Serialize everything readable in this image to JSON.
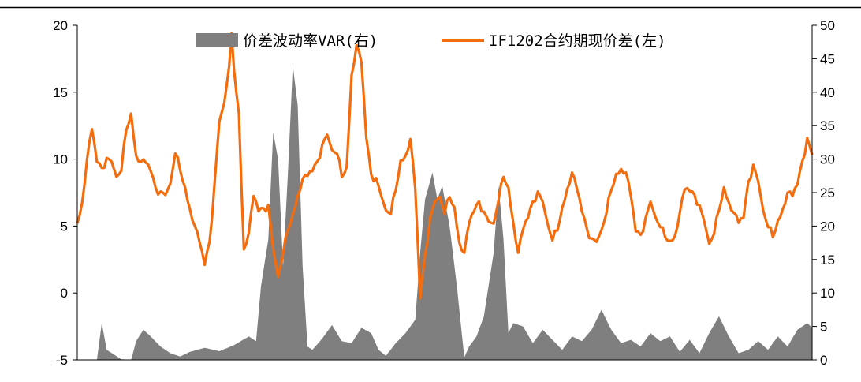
{
  "chart_data": {
    "type": "line+area",
    "legend_position": "top-center",
    "grid": false,
    "x_points": 300,
    "left_axis": {
      "ylim": [
        -5,
        20
      ],
      "ticks": [
        "-5",
        "0",
        "5",
        "10",
        "15",
        "20"
      ]
    },
    "right_axis": {
      "ylim": [
        0,
        50
      ],
      "ticks": [
        "0",
        "5",
        "10",
        "15",
        "20",
        "25",
        "30",
        "35",
        "40",
        "45",
        "50"
      ]
    },
    "series": [
      {
        "name": "价差波动率VAR(右)",
        "kind": "area",
        "axis": "right",
        "color": "#7f7f7f",
        "anchors": [
          [
            0,
            0
          ],
          [
            8,
            0
          ],
          [
            10,
            5.5
          ],
          [
            12,
            1.5
          ],
          [
            15,
            0.8
          ],
          [
            18,
            0.1
          ],
          [
            22,
            0
          ],
          [
            24,
            2.8
          ],
          [
            27,
            4.5
          ],
          [
            30,
            3.5
          ],
          [
            34,
            2
          ],
          [
            38,
            1
          ],
          [
            42,
            0.5
          ],
          [
            46,
            1.2
          ],
          [
            52,
            1.8
          ],
          [
            58,
            1.3
          ],
          [
            64,
            2.2
          ],
          [
            70,
            3.5
          ],
          [
            73,
            2.8
          ],
          [
            75,
            11
          ],
          [
            78,
            18
          ],
          [
            80,
            34
          ],
          [
            82,
            30
          ],
          [
            84,
            14
          ],
          [
            86,
            28
          ],
          [
            88,
            44
          ],
          [
            90,
            38
          ],
          [
            92,
            14
          ],
          [
            94,
            2
          ],
          [
            96,
            1.5
          ],
          [
            100,
            3.2
          ],
          [
            104,
            5.2
          ],
          [
            108,
            2.8
          ],
          [
            112,
            2.5
          ],
          [
            116,
            4.8
          ],
          [
            120,
            4
          ],
          [
            123,
            1.5
          ],
          [
            126,
            0.6
          ],
          [
            130,
            2.5
          ],
          [
            134,
            4
          ],
          [
            138,
            6
          ],
          [
            140,
            16
          ],
          [
            142,
            24
          ],
          [
            145,
            28
          ],
          [
            147,
            24
          ],
          [
            149,
            26
          ],
          [
            152,
            20
          ],
          [
            155,
            11
          ],
          [
            158,
            0.4
          ],
          [
            160,
            2
          ],
          [
            163,
            3.5
          ],
          [
            166,
            6.5
          ],
          [
            170,
            16
          ],
          [
            172,
            26
          ],
          [
            174,
            18
          ],
          [
            176,
            4
          ],
          [
            178,
            5.5
          ],
          [
            182,
            5
          ],
          [
            186,
            2.5
          ],
          [
            190,
            4.5
          ],
          [
            194,
            3
          ],
          [
            198,
            1.5
          ],
          [
            202,
            3.5
          ],
          [
            206,
            2.8
          ],
          [
            210,
            4.5
          ],
          [
            214,
            7.5
          ],
          [
            218,
            4.5
          ],
          [
            222,
            2.5
          ],
          [
            226,
            3
          ],
          [
            230,
            2
          ],
          [
            234,
            4
          ],
          [
            238,
            2.8
          ],
          [
            242,
            3.5
          ],
          [
            246,
            1.2
          ],
          [
            250,
            3
          ],
          [
            254,
            1
          ],
          [
            258,
            4
          ],
          [
            262,
            6.5
          ],
          [
            266,
            3.5
          ],
          [
            270,
            1
          ],
          [
            274,
            1.5
          ],
          [
            278,
            2.8
          ],
          [
            282,
            1.5
          ],
          [
            286,
            3.5
          ],
          [
            290,
            2
          ],
          [
            294,
            4.5
          ],
          [
            298,
            5.5
          ],
          [
            300,
            4.8
          ]
        ]
      },
      {
        "name": "IF1202合约期现价差(左)",
        "kind": "line",
        "axis": "left",
        "color": "#f36c0e",
        "anchors": [
          [
            0,
            4.8
          ],
          [
            2,
            7
          ],
          [
            4,
            10
          ],
          [
            6,
            12
          ],
          [
            8,
            10.2
          ],
          [
            10,
            9.5
          ],
          [
            12,
            10
          ],
          [
            14,
            9.5
          ],
          [
            16,
            9
          ],
          [
            18,
            9.2
          ],
          [
            20,
            12
          ],
          [
            22,
            13
          ],
          [
            24,
            10.5
          ],
          [
            26,
            9.8
          ],
          [
            28,
            9.5
          ],
          [
            30,
            9.5
          ],
          [
            32,
            8
          ],
          [
            34,
            7.5
          ],
          [
            36,
            7
          ],
          [
            38,
            8.5
          ],
          [
            40,
            10.5
          ],
          [
            42,
            9
          ],
          [
            44,
            7.5
          ],
          [
            46,
            6.5
          ],
          [
            48,
            5
          ],
          [
            50,
            3.5
          ],
          [
            52,
            2.5
          ],
          [
            54,
            4
          ],
          [
            56,
            8
          ],
          [
            58,
            12.5
          ],
          [
            60,
            14.5
          ],
          [
            62,
            17
          ],
          [
            63,
            19
          ],
          [
            64,
            16.5
          ],
          [
            66,
            13
          ],
          [
            68,
            3.5
          ],
          [
            70,
            4.5
          ],
          [
            72,
            7
          ],
          [
            74,
            6.5
          ],
          [
            76,
            6.5
          ],
          [
            78,
            6.5
          ],
          [
            80,
            3
          ],
          [
            82,
            1.5
          ],
          [
            84,
            3
          ],
          [
            86,
            4.5
          ],
          [
            88,
            5.5
          ],
          [
            90,
            7.5
          ],
          [
            92,
            8.5
          ],
          [
            94,
            8.5
          ],
          [
            96,
            9.5
          ],
          [
            98,
            10
          ],
          [
            100,
            11
          ],
          [
            102,
            11.5
          ],
          [
            104,
            11
          ],
          [
            106,
            10.5
          ],
          [
            108,
            8.5
          ],
          [
            110,
            9
          ],
          [
            112,
            16.5
          ],
          [
            114,
            18.5
          ],
          [
            116,
            17
          ],
          [
            118,
            12
          ],
          [
            120,
            9
          ],
          [
            122,
            8.5
          ],
          [
            124,
            7
          ],
          [
            126,
            6.5
          ],
          [
            128,
            6
          ],
          [
            130,
            7.5
          ],
          [
            132,
            9.5
          ],
          [
            134,
            10.5
          ],
          [
            136,
            11.5
          ],
          [
            138,
            7.5
          ],
          [
            140,
            0
          ],
          [
            142,
            3
          ],
          [
            144,
            5.5
          ],
          [
            146,
            6.5
          ],
          [
            148,
            7.5
          ],
          [
            150,
            6
          ],
          [
            152,
            7
          ],
          [
            154,
            6
          ],
          [
            156,
            4
          ],
          [
            158,
            3
          ],
          [
            160,
            5
          ],
          [
            162,
            6.5
          ],
          [
            164,
            7
          ],
          [
            166,
            6
          ],
          [
            168,
            5
          ],
          [
            170,
            5.5
          ],
          [
            172,
            7
          ],
          [
            174,
            8.5
          ],
          [
            176,
            7.5
          ],
          [
            178,
            5.5
          ],
          [
            180,
            3
          ],
          [
            182,
            4.5
          ],
          [
            184,
            6
          ],
          [
            186,
            7
          ],
          [
            188,
            7.5
          ],
          [
            190,
            6.5
          ],
          [
            192,
            5.5
          ],
          [
            194,
            4
          ],
          [
            196,
            4.5
          ],
          [
            198,
            6
          ],
          [
            200,
            8
          ],
          [
            202,
            9
          ],
          [
            204,
            7.5
          ],
          [
            206,
            6.5
          ],
          [
            208,
            5
          ],
          [
            210,
            4
          ],
          [
            212,
            3.5
          ],
          [
            214,
            5
          ],
          [
            216,
            6
          ],
          [
            218,
            7.5
          ],
          [
            220,
            8.5
          ],
          [
            222,
            9.5
          ],
          [
            224,
            9
          ],
          [
            226,
            7
          ],
          [
            228,
            5
          ],
          [
            230,
            4.5
          ],
          [
            232,
            5.5
          ],
          [
            234,
            6.5
          ],
          [
            236,
            6
          ],
          [
            238,
            5
          ],
          [
            240,
            4
          ],
          [
            242,
            3.5
          ],
          [
            244,
            4.5
          ],
          [
            246,
            6
          ],
          [
            248,
            7.5
          ],
          [
            250,
            8
          ],
          [
            252,
            7.5
          ],
          [
            254,
            6.5
          ],
          [
            256,
            5
          ],
          [
            258,
            4
          ],
          [
            260,
            4.5
          ],
          [
            262,
            6
          ],
          [
            264,
            7.5
          ],
          [
            266,
            7
          ],
          [
            268,
            6
          ],
          [
            270,
            5
          ],
          [
            272,
            6
          ],
          [
            274,
            8.5
          ],
          [
            276,
            9.5
          ],
          [
            278,
            8
          ],
          [
            280,
            6.5
          ],
          [
            282,
            5
          ],
          [
            284,
            4
          ],
          [
            286,
            5
          ],
          [
            288,
            6.5
          ],
          [
            290,
            7.5
          ],
          [
            292,
            7
          ],
          [
            294,
            8.5
          ],
          [
            296,
            10
          ],
          [
            298,
            11.5
          ],
          [
            300,
            10
          ]
        ]
      }
    ]
  },
  "legend": {
    "area_label": "价差波动率VAR(右)",
    "line_label": "IF1202合约期现价差(左)"
  }
}
